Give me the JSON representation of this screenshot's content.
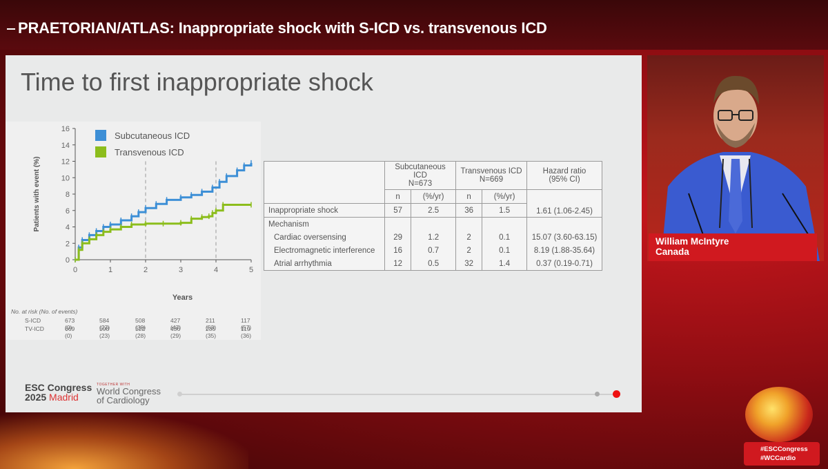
{
  "session": {
    "title": "PRAETORIAN/ATLAS: Inappropriate shock with S-ICD vs. transvenous ICD"
  },
  "slide": {
    "title": "Time to first inappropriate shock",
    "footer": {
      "esc_line1": "ESC Congress",
      "esc_year": "2025",
      "esc_city": "Madrid",
      "wcc_small": "TOGETHER WITH",
      "wcc_line1": "World Congress",
      "wcc_line2": "of Cardiology"
    }
  },
  "chart_data": {
    "type": "line",
    "step": true,
    "xlabel": "Years",
    "ylabel": "Patients with event (%)",
    "xlim": [
      0,
      5
    ],
    "ylim": [
      0,
      16
    ],
    "xticks": [
      0,
      1,
      2,
      3,
      4,
      5
    ],
    "yticks": [
      0,
      2,
      4,
      6,
      8,
      10,
      12,
      14,
      16
    ],
    "reference_lines_x": [
      2,
      4
    ],
    "legend": "top-left",
    "series": [
      {
        "name": "Subcutaneous ICD",
        "color": "#3d8fd6",
        "x": [
          0,
          0.1,
          0.2,
          0.4,
          0.6,
          0.8,
          1.0,
          1.3,
          1.6,
          1.8,
          2.0,
          2.3,
          2.6,
          3.0,
          3.3,
          3.6,
          3.9,
          4.1,
          4.3,
          4.6,
          4.8,
          5.0
        ],
        "y": [
          0,
          1.5,
          2.4,
          3.0,
          3.5,
          4.0,
          4.3,
          4.8,
          5.3,
          5.8,
          6.3,
          6.8,
          7.3,
          7.6,
          7.9,
          8.3,
          8.8,
          9.5,
          10.2,
          10.9,
          11.5,
          11.8
        ]
      },
      {
        "name": "Transvenous ICD",
        "color": "#8cbd1c",
        "x": [
          0,
          0.1,
          0.2,
          0.4,
          0.6,
          0.8,
          1.0,
          1.3,
          1.6,
          2.0,
          2.5,
          3.0,
          3.3,
          3.6,
          3.8,
          3.9,
          4.0,
          4.2,
          5.0
        ],
        "y": [
          0,
          1.2,
          2.0,
          2.5,
          3.0,
          3.4,
          3.7,
          4.0,
          4.3,
          4.4,
          4.4,
          4.5,
          5.0,
          5.2,
          5.3,
          5.7,
          6.0,
          6.7,
          6.7
        ]
      }
    ],
    "risk_table": {
      "header": "No. at risk (No. of events)",
      "rows": [
        {
          "label": "S-ICD",
          "values": [
            "673 (0)",
            "584 (27)",
            "508 (39)",
            "427 (47)",
            "211 (53)",
            "117 (57)"
          ]
        },
        {
          "label": "TV-ICD",
          "values": [
            "669 (0)",
            "598 (23)",
            "522 (28)",
            "436 (29)",
            "235 (35)",
            "119 (36)"
          ]
        }
      ]
    }
  },
  "table": {
    "headers": {
      "sicd": "Subcutaneous ICD",
      "sicd_n": "N=673",
      "tvicd": "Transvenous ICD",
      "tvicd_n": "N=669",
      "hr": "Hazard ratio",
      "hr_ci": "(95% CI)"
    },
    "subheaders": {
      "n": "n",
      "rate": "(%/yr)"
    },
    "rows": [
      {
        "label": "Inappropriate shock",
        "s_n": "57",
        "s_rate": "2.5",
        "t_n": "36",
        "t_rate": "1.5",
        "hr": "1.61 (1.06-2.45)"
      },
      {
        "label": "Mechanism"
      },
      {
        "label": "Cardiac oversensing",
        "s_n": "29",
        "s_rate": "1.2",
        "t_n": "2",
        "t_rate": "0.1",
        "hr": "15.07 (3.60-63.15)"
      },
      {
        "label": "Electromagnetic interference",
        "s_n": "16",
        "s_rate": "0.7",
        "t_n": "2",
        "t_rate": "0.1",
        "hr": "8.19 (1.88-35.64)"
      },
      {
        "label": "Atrial arrhythmia",
        "s_n": "12",
        "s_rate": "0.5",
        "t_n": "32",
        "t_rate": "1.4",
        "hr": "0.37 (0.19-0.71)"
      }
    ]
  },
  "speaker": {
    "name": "William McIntyre",
    "country": "Canada"
  },
  "hashtags": {
    "line1": "#ESCCongress",
    "line2": "#WCCardio"
  },
  "colors": {
    "brand_red": "#d0191f",
    "sicd_blue": "#3d8fd6",
    "tvicd_green": "#8cbd1c"
  }
}
